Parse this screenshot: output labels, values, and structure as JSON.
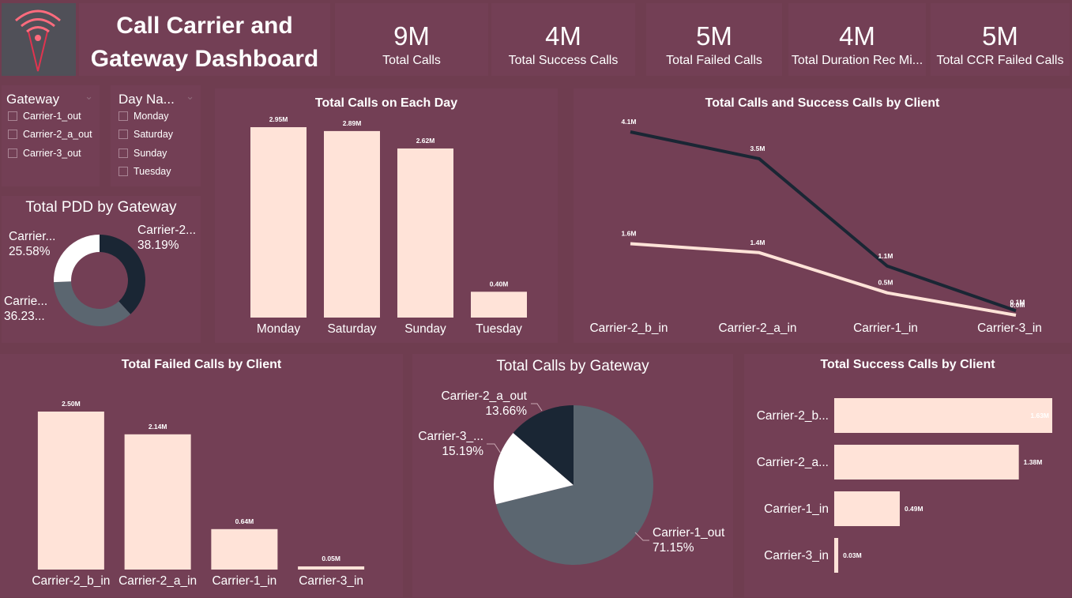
{
  "header": {
    "title_line1": "Call Carrier and",
    "title_line2": "Gateway Dashboard",
    "logo": "wifi-neon-logo"
  },
  "colors": {
    "background": "#6f3d50",
    "card": "#733f55",
    "bar": "#ffe3d8",
    "dark": "#1a2634",
    "slate": "#5b6670",
    "white": "#ffffff",
    "accent_logo": "#e0344f"
  },
  "kpis": [
    {
      "value": "9M",
      "label": "Total Calls"
    },
    {
      "value": "4M",
      "label": "Total Success Calls"
    },
    {
      "value": "5M",
      "label": "Total Failed Calls"
    },
    {
      "value": "4M",
      "label": "Total Duration Rec Mi..."
    },
    {
      "value": "5M",
      "label": "Total CCR Failed Calls"
    }
  ],
  "slicers": {
    "gateway": {
      "title": "Gateway",
      "items": [
        "Carrier-1_out",
        "Carrier-2_a_out",
        "Carrier-3_out"
      ]
    },
    "day": {
      "title": "Day Na...",
      "items": [
        "Monday",
        "Saturday",
        "Sunday",
        "Tuesday"
      ]
    }
  },
  "chart_data": [
    {
      "id": "day_bar",
      "type": "bar",
      "title": "Total Calls on Each Day",
      "categories": [
        "Monday",
        "Saturday",
        "Sunday",
        "Tuesday"
      ],
      "values": [
        2.95,
        2.89,
        2.62,
        0.4
      ],
      "data_labels": [
        "2.95M",
        "2.89M",
        "2.62M",
        "0.40M"
      ],
      "ylim": [
        0,
        2.95
      ]
    },
    {
      "id": "client_line",
      "type": "line",
      "title": "Total Calls and Success Calls by Client",
      "categories": [
        "Carrier-2_b_in",
        "Carrier-2_a_in",
        "Carrier-1_in",
        "Carrier-3_in"
      ],
      "series": [
        {
          "values": [
            4.1,
            3.5,
            1.1,
            0.1
          ],
          "labels": [
            "4.1M",
            "3.5M",
            "1.1M",
            "0.1M"
          ],
          "color": "#1a2634"
        },
        {
          "values": [
            1.6,
            1.4,
            0.5,
            0.0
          ],
          "labels": [
            "1.6M",
            "1.4M",
            "0.5M",
            "0.0M"
          ],
          "color": "#ffe3d8"
        }
      ],
      "ylim": [
        0,
        4.1
      ]
    },
    {
      "id": "pdd_donut",
      "type": "pie",
      "title": "Total PDD by Gateway",
      "slices": [
        {
          "label": "Carrier-2...",
          "pct_label": "38.19%",
          "value": 38.19,
          "color": "#1a2634"
        },
        {
          "label": "Carrie...",
          "pct_label": "36.23...",
          "value": 36.23,
          "color": "#5b6670"
        },
        {
          "label": "Carrier...",
          "pct_label": "25.58%",
          "value": 25.58,
          "color": "#ffffff"
        }
      ]
    },
    {
      "id": "failed_bar",
      "type": "bar",
      "title": "Total Failed Calls by Client",
      "categories": [
        "Carrier-2_b_in",
        "Carrier-2_a_in",
        "Carrier-1_in",
        "Carrier-3_in"
      ],
      "values": [
        2.5,
        2.14,
        0.64,
        0.05
      ],
      "data_labels": [
        "2.50M",
        "2.14M",
        "0.64M",
        "0.05M"
      ],
      "ylim": [
        0,
        2.5
      ]
    },
    {
      "id": "gateway_pie",
      "type": "pie",
      "title": "Total Calls by Gateway",
      "slices": [
        {
          "label": "Carrier-1_out",
          "pct_label": "71.15%",
          "value": 71.15,
          "color": "#5b6670"
        },
        {
          "label": "Carrier-3_...",
          "pct_label": "15.19%",
          "value": 15.19,
          "color": "#ffffff"
        },
        {
          "label": "Carrier-2_a_out",
          "pct_label": "13.66%",
          "value": 13.66,
          "color": "#1a2634"
        }
      ]
    },
    {
      "id": "success_hbar",
      "type": "bar",
      "orientation": "horizontal",
      "title": "Total Success Calls by Client",
      "categories": [
        "Carrier-2_b...",
        "Carrier-2_a...",
        "Carrier-1_in",
        "Carrier-3_in"
      ],
      "values": [
        1.63,
        1.38,
        0.49,
        0.03
      ],
      "data_labels": [
        "1.63M",
        "1.38M",
        "0.49M",
        "0.03M"
      ],
      "xlim": [
        0,
        1.63
      ]
    }
  ]
}
